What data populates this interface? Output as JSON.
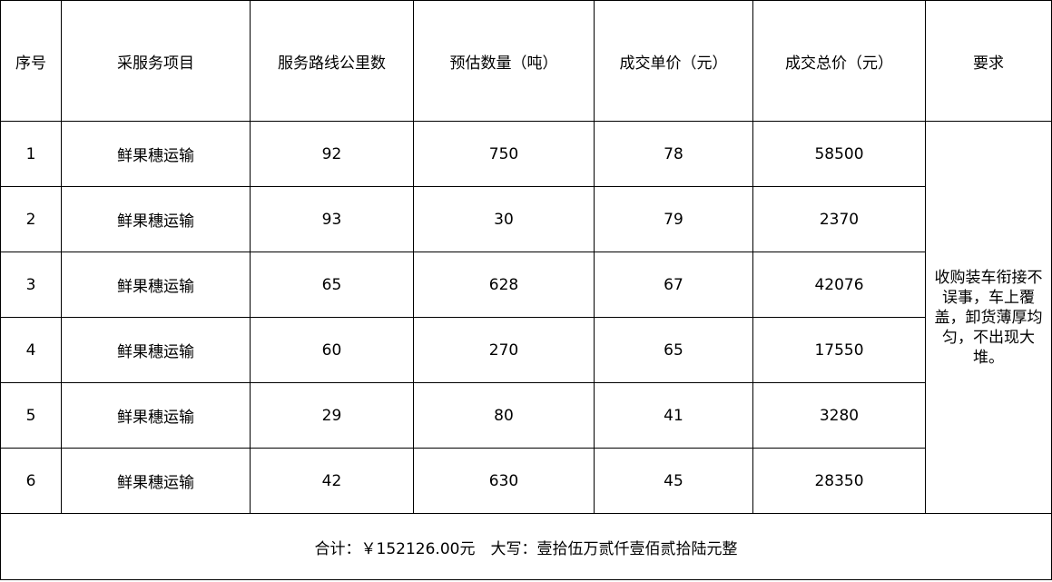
{
  "headers": [
    "序号",
    "采服务项目",
    "服务路线公里数",
    "预估数量（吨）",
    "成交单价（元）",
    "成交总价（元）",
    "要求"
  ],
  "rows": [
    [
      "1",
      "鲜果穗运输",
      "92",
      "750",
      "78",
      "58500"
    ],
    [
      "2",
      "鲜果穗运输",
      "93",
      "30",
      "79",
      "2370"
    ],
    [
      "3",
      "鲜果穗运输",
      "65",
      "628",
      "67",
      "42076"
    ],
    [
      "4",
      "鲜果穗运输",
      "60",
      "270",
      "65",
      "17550"
    ],
    [
      "5",
      "鲜果穗运输",
      "29",
      "80",
      "41",
      "3280"
    ],
    [
      "6",
      "鲜果穗运输",
      "42",
      "630",
      "45",
      "28350"
    ]
  ],
  "requirement": "收购装车衔接不误事，车上覆盖，卸货薄厚均匀，不出现大堆。",
  "footer": "合计：￥152126.00元　大写：壹拾伍万贰仟壹佰贰拾陆元整"
}
